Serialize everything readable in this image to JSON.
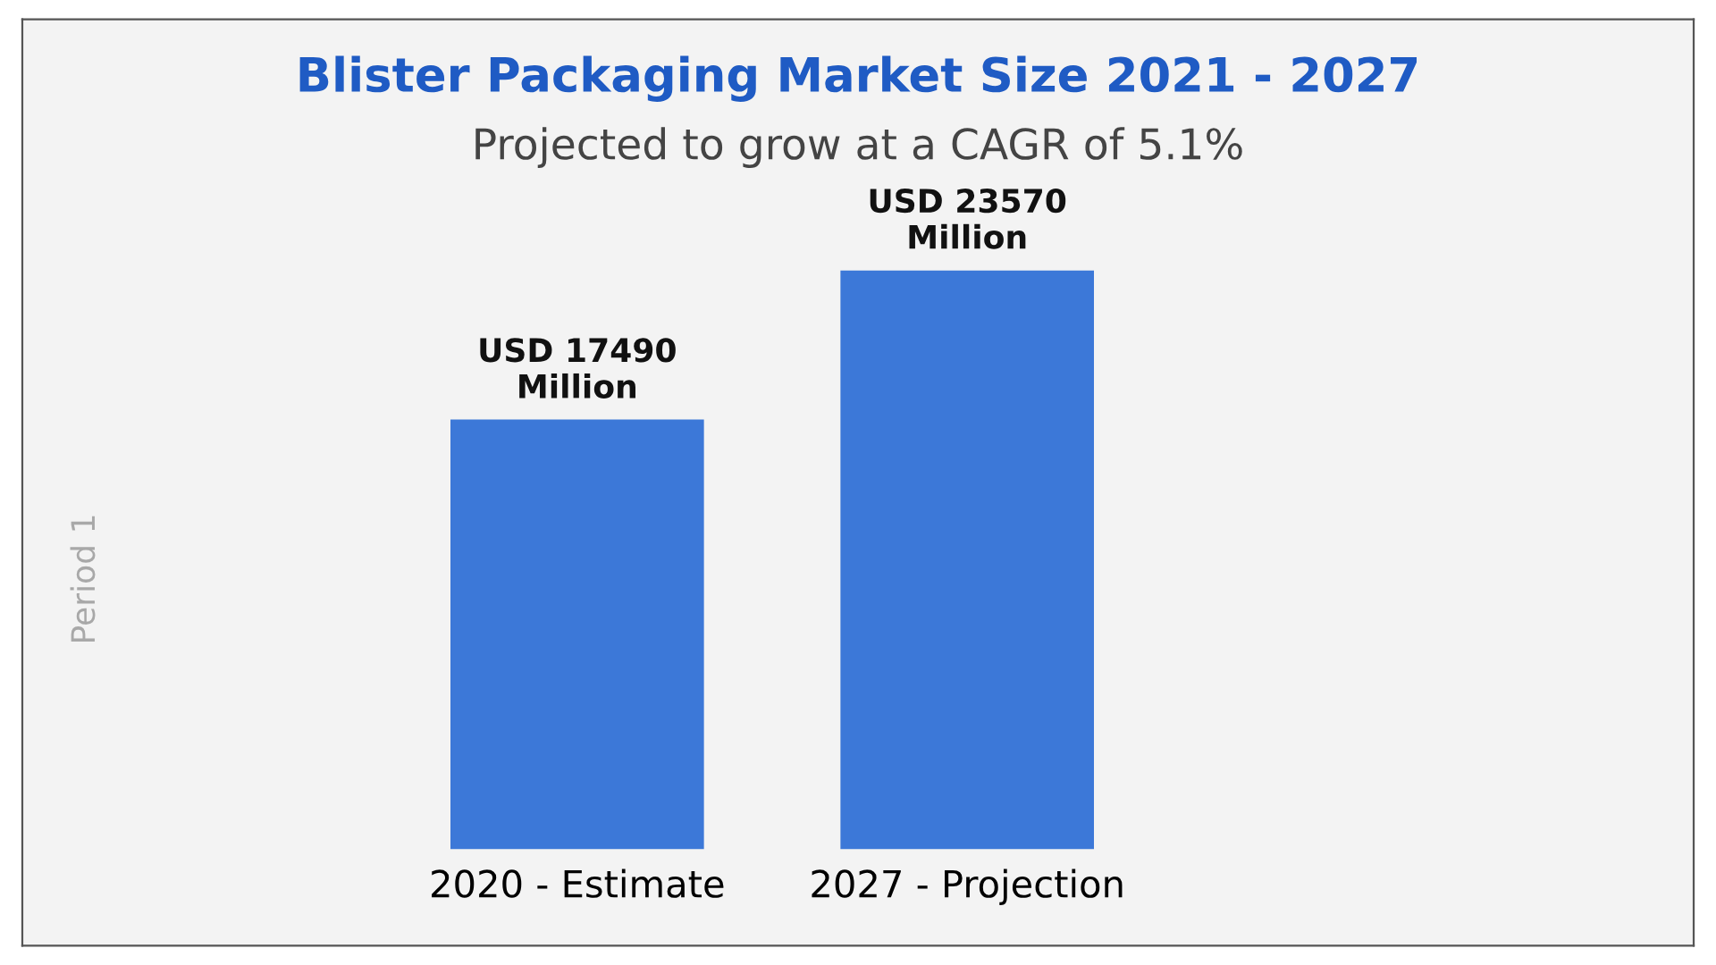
{
  "chart_data": {
    "type": "bar",
    "title": "Blister Packaging Market Size 2021 - 2027",
    "subtitle": "Projected to grow at a CAGR of 5.1%",
    "annotations": [
      "Period 1"
    ],
    "categories": [
      "2020 - Estimate",
      "2027 - Projection"
    ],
    "values": [
      17490,
      23570
    ],
    "value_labels": [
      "USD 17490\nMillion",
      "USD 23570\nMillion"
    ],
    "color": "#3c78d8",
    "grid": false,
    "legend": false,
    "tick_labels": "x"
  }
}
